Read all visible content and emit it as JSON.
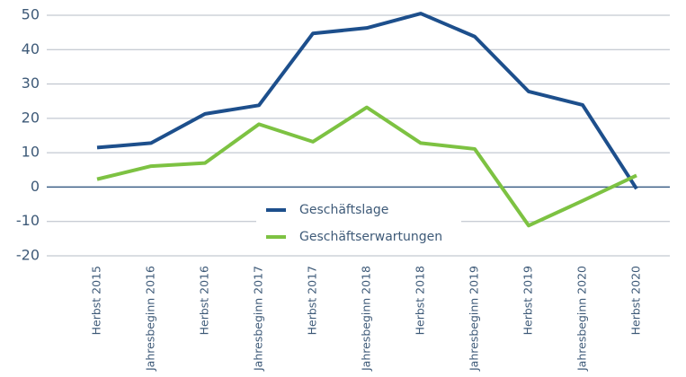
{
  "chart_data": {
    "type": "line",
    "categories": [
      "Herbst 2015",
      "Jahresbeginn 2016",
      "Herbst 2016",
      "Jahresbeginn 2017",
      "Herbst 2017",
      "Jahresbeginn 2018",
      "Herbst 2018",
      "Jahresbeginn 2019",
      "Herbst 2019",
      "Jahresbeginn 2020",
      "Herbst 2020"
    ],
    "series": [
      {
        "name": "Geschäftslage",
        "color": "#1d4f8c",
        "values": [
          11.5,
          12.8,
          21.3,
          23.8,
          44.7,
          46.3,
          50.5,
          43.8,
          27.8,
          23.9,
          -0.5
        ]
      },
      {
        "name": "Geschäftserwartungen",
        "color": "#7dc242",
        "values": [
          2.3,
          6.1,
          7.0,
          18.3,
          13.2,
          23.2,
          12.8,
          11.1,
          -11.2,
          -4.0,
          3.4
        ]
      }
    ],
    "ylim": [
      -20,
      50
    ],
    "yticks": [
      -20,
      -10,
      0,
      10,
      20,
      30,
      40,
      50
    ],
    "grid": true,
    "legend": "center"
  }
}
